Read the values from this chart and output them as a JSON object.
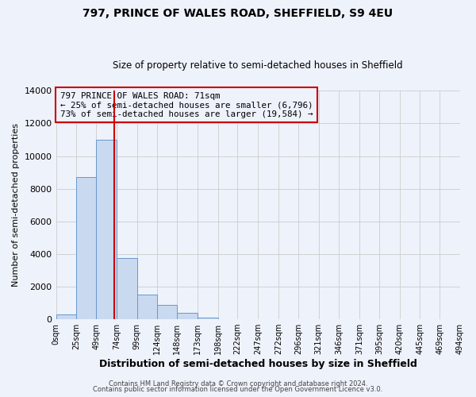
{
  "title": "797, PRINCE OF WALES ROAD, SHEFFIELD, S9 4EU",
  "subtitle": "Size of property relative to semi-detached houses in Sheffield",
  "bar_edges": [
    0,
    25,
    49,
    74,
    99,
    124,
    148,
    173,
    198,
    222,
    247,
    272,
    296,
    321,
    346,
    371,
    395,
    420,
    445,
    469,
    494
  ],
  "bar_heights": [
    300,
    8700,
    11000,
    3750,
    1500,
    900,
    400,
    100,
    0,
    0,
    0,
    0,
    0,
    0,
    0,
    0,
    0,
    0,
    0,
    0
  ],
  "tick_labels": [
    "0sqm",
    "25sqm",
    "49sqm",
    "74sqm",
    "99sqm",
    "124sqm",
    "148sqm",
    "173sqm",
    "198sqm",
    "222sqm",
    "247sqm",
    "272sqm",
    "296sqm",
    "321sqm",
    "346sqm",
    "371sqm",
    "395sqm",
    "420sqm",
    "445sqm",
    "469sqm",
    "494sqm"
  ],
  "property_size": 71,
  "property_label": "797 PRINCE OF WALES ROAD: 71sqm",
  "pct_smaller": 25,
  "count_smaller": "6,796",
  "pct_larger": 73,
  "count_larger": "19,584",
  "bar_fill": "#c9d9f0",
  "bar_edge": "#6699cc",
  "vline_color": "#cc0000",
  "box_edge_color": "#cc0000",
  "ylabel": "Number of semi-detached properties",
  "xlabel": "Distribution of semi-detached houses by size in Sheffield",
  "ylim": [
    0,
    14000
  ],
  "yticks": [
    0,
    2000,
    4000,
    6000,
    8000,
    10000,
    12000,
    14000
  ],
  "footer1": "Contains HM Land Registry data © Crown copyright and database right 2024.",
  "footer2": "Contains public sector information licensed under the Open Government Licence v3.0.",
  "grid_color": "#cccccc",
  "bg_color": "#eef2fb"
}
